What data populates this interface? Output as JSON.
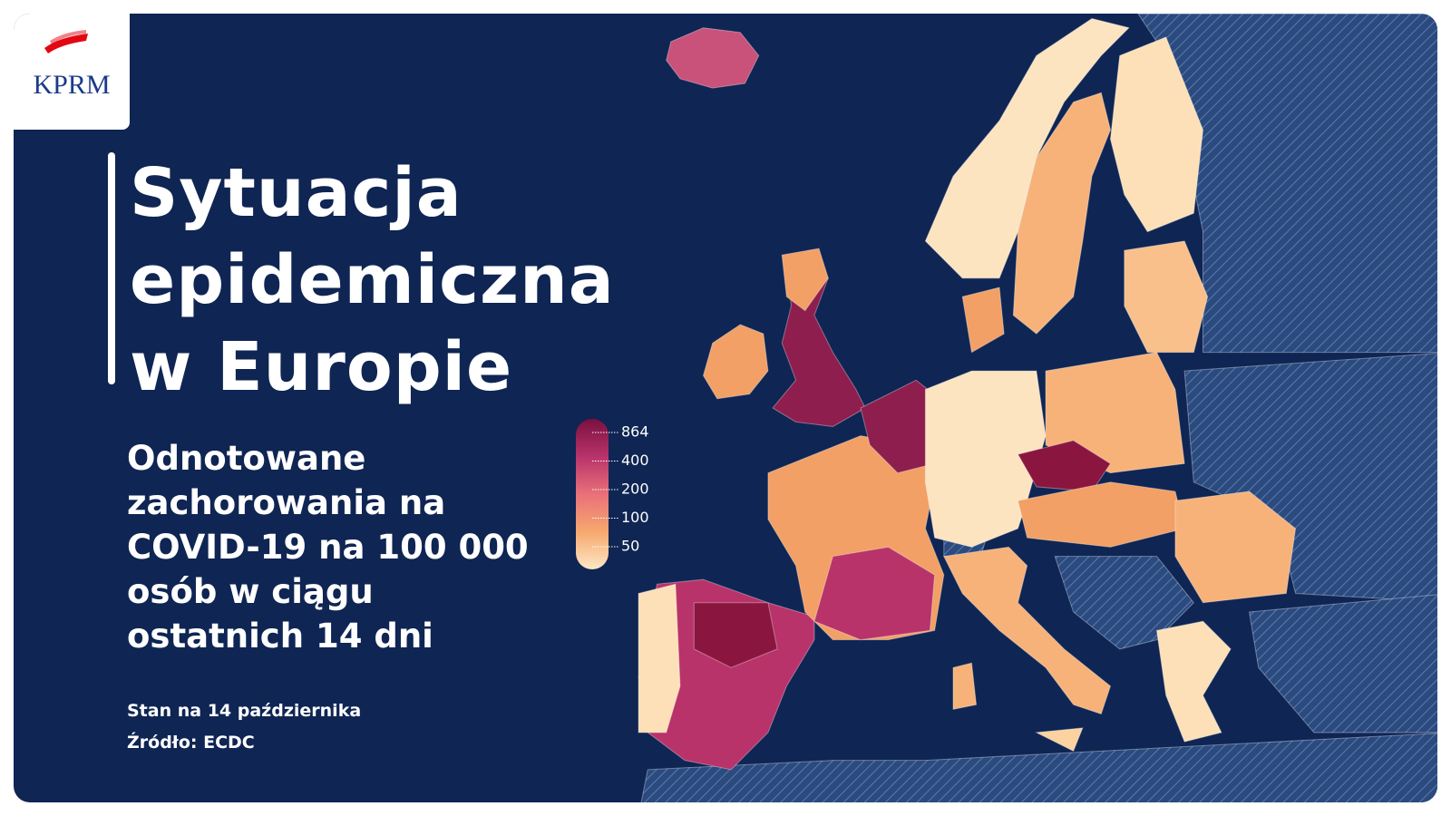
{
  "logo": "KPRM",
  "title": [
    "Sytuacja",
    "epidemiczna",
    "w Europie"
  ],
  "subtitle": [
    "Odnotowane",
    "zachorowania na",
    "COVID-19 na 100 000",
    "osób w ciągu",
    "ostatnich 14 dni"
  ],
  "date": "Stan na 14 października",
  "source": "Źródło: ECDC",
  "legend": {
    "ticks": [
      864,
      400,
      200,
      100,
      50
    ],
    "colors": [
      "#7a1040",
      "#b8336a",
      "#e9707a",
      "#f6a86e",
      "#fde8c6"
    ]
  }
}
